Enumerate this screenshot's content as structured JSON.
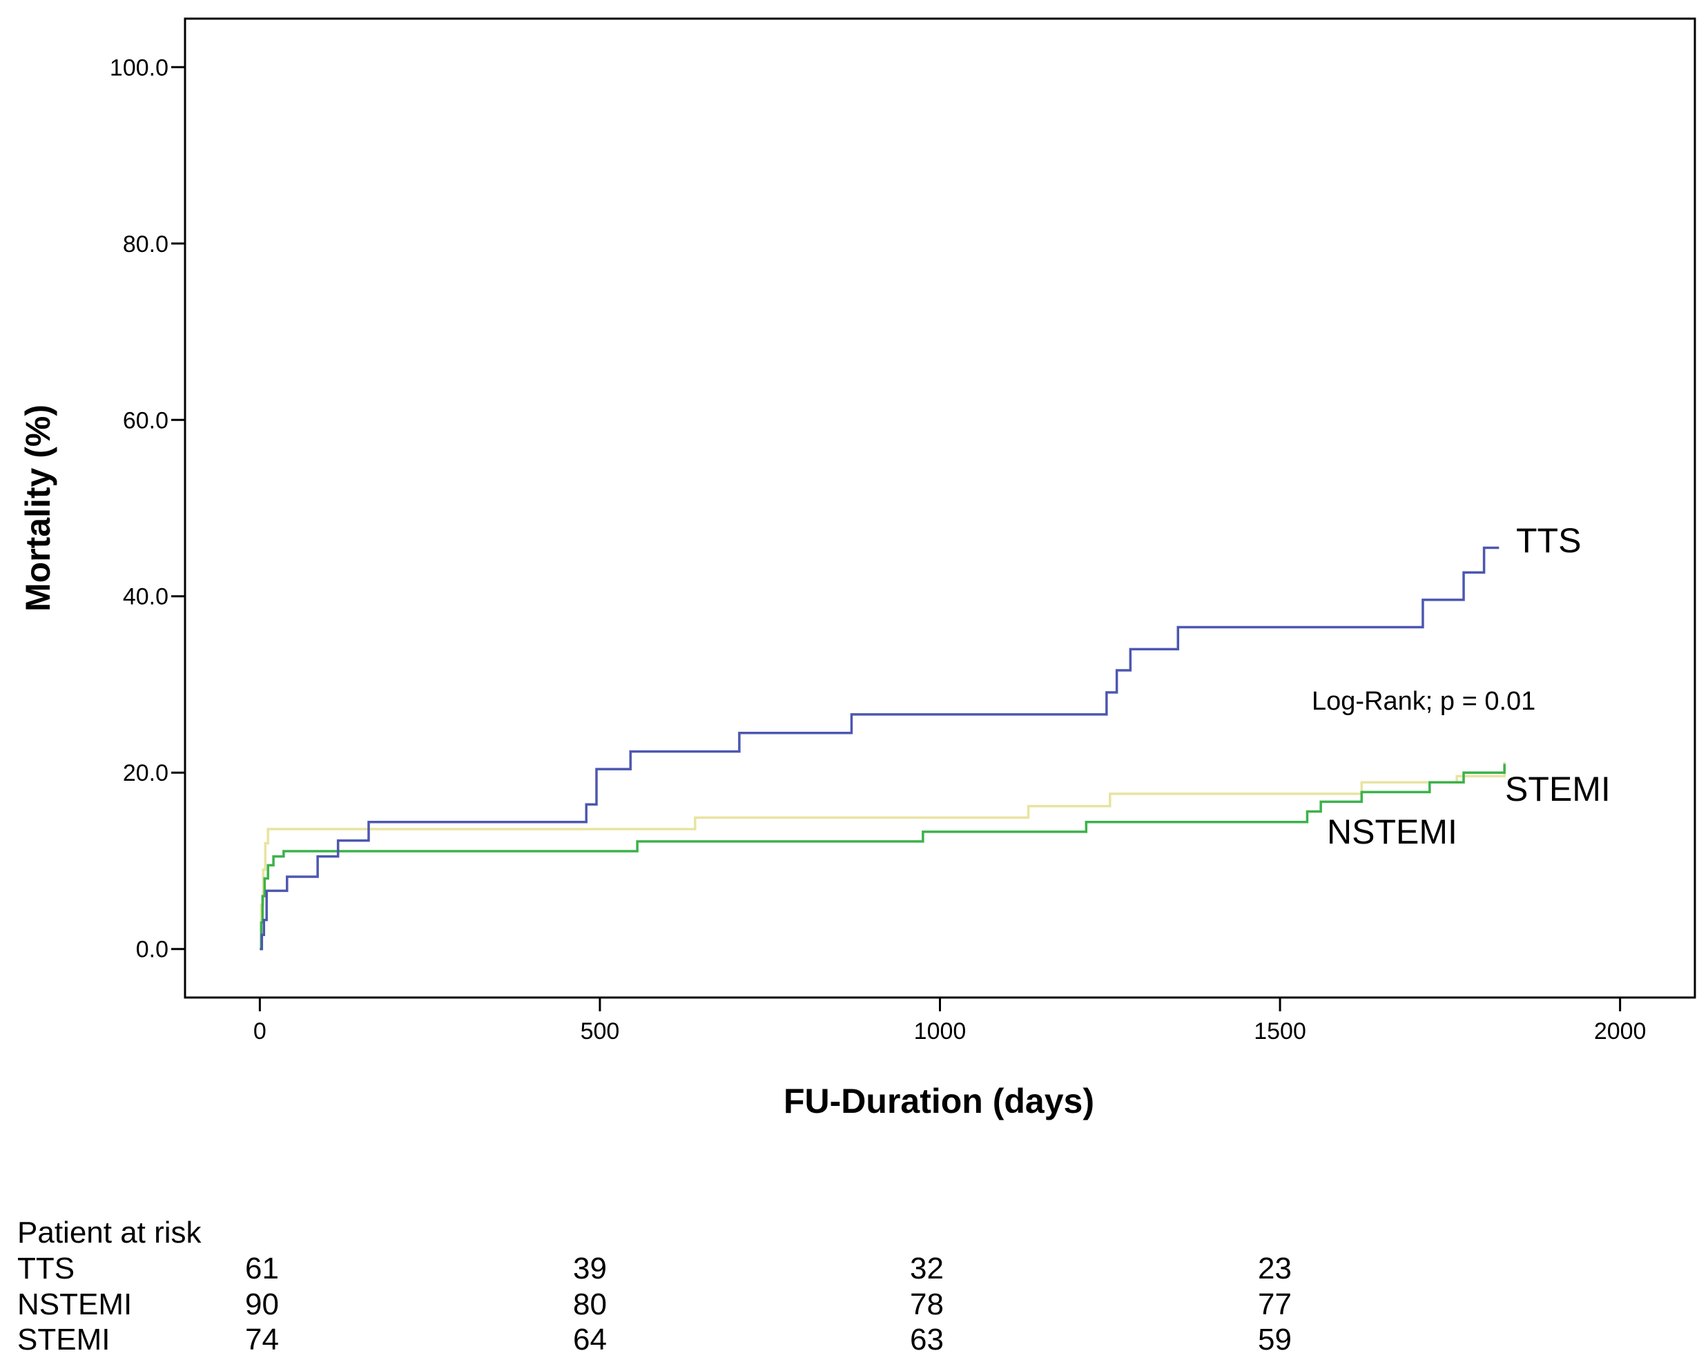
{
  "chart_data": {
    "type": "line",
    "step": true,
    "xlabel": "FU-Duration (days)",
    "ylabel": "Mortality (%)",
    "xlim": [
      -110,
      2110
    ],
    "ylim": [
      -5.5,
      105.5
    ],
    "xticks": [
      0,
      500,
      1000,
      1500,
      2000
    ],
    "yticks": [
      0,
      20,
      40,
      60,
      80,
      100
    ],
    "ytick_labels": [
      "0.0",
      "20.0",
      "40.0",
      "60.0",
      "80.0",
      "100.0"
    ],
    "grid": false,
    "annotation": "Log-Rank; p = 0.01",
    "series": [
      {
        "name": "STEMI",
        "label": "STEMI",
        "color": "#e8e4a0",
        "x": [
          0,
          2,
          5,
          8,
          12,
          640,
          1130,
          1250,
          1620,
          1760,
          1830
        ],
        "y": [
          0,
          5,
          9,
          12,
          13.6,
          14.9,
          16.2,
          17.6,
          18.9,
          19.6,
          21.2
        ]
      },
      {
        "name": "NSTEMI",
        "label": "NSTEMI",
        "color": "#3cb24a",
        "x": [
          0,
          2,
          4,
          7,
          12,
          20,
          35,
          555,
          975,
          1215,
          1540,
          1560,
          1620,
          1720,
          1770,
          1830
        ],
        "y": [
          0,
          3,
          6,
          8,
          9.5,
          10.5,
          11.1,
          12.2,
          13.3,
          14.4,
          15.6,
          16.7,
          17.8,
          18.9,
          20.0,
          21.0
        ]
      },
      {
        "name": "TTS",
        "label": "TTS",
        "color": "#4c57b0",
        "x": [
          0,
          3,
          6,
          10,
          40,
          85,
          115,
          160,
          480,
          495,
          545,
          705,
          870,
          1245,
          1260,
          1280,
          1295,
          1350,
          1710,
          1770,
          1800,
          1822
        ],
        "y": [
          0,
          1.6,
          3.3,
          6.6,
          8.2,
          10.5,
          12.3,
          14.4,
          16.4,
          20.4,
          22.4,
          24.5,
          26.6,
          29.1,
          31.6,
          34.0,
          34.0,
          36.5,
          39.6,
          42.7,
          45.5,
          45.5
        ]
      }
    ],
    "risk_table": {
      "title": "Patient at risk",
      "rows": [
        {
          "label": "TTS",
          "values": [
            "61",
            "39",
            "32",
            "23"
          ]
        },
        {
          "label": "NSTEMI",
          "values": [
            "90",
            "80",
            "78",
            "77"
          ]
        },
        {
          "label": "STEMI",
          "values": [
            "74",
            "64",
            "63",
            "59"
          ]
        }
      ]
    }
  }
}
